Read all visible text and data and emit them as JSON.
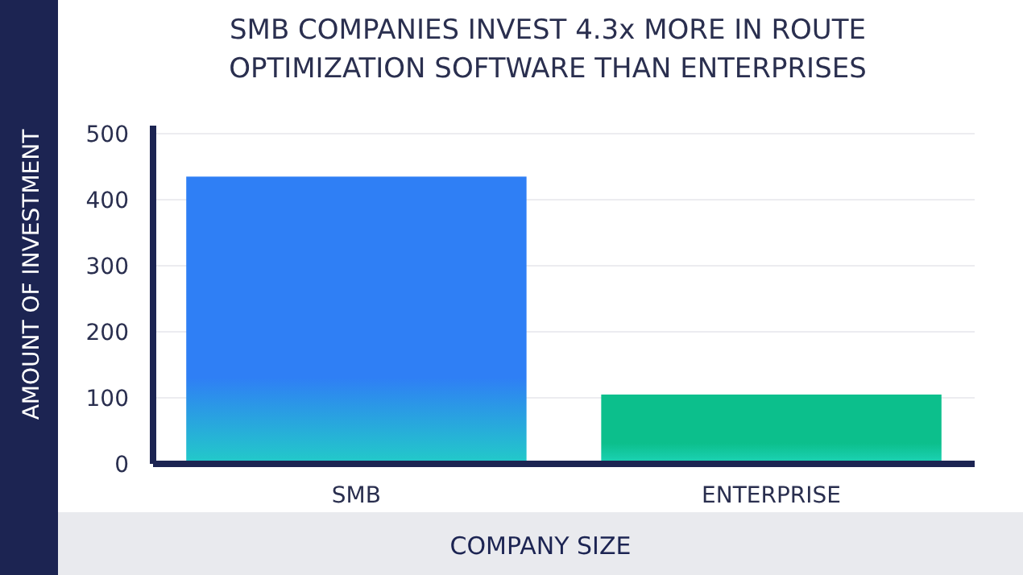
{
  "chart_data": {
    "type": "bar",
    "title": "SMB COMPANIES INVEST 4.3x MORE IN ROUTE OPTIMIZATION SOFTWARE THAN ENTERPRISES",
    "xlabel": "COMPANY SIZE",
    "ylabel": "AMOUNT OF INVESTMENT",
    "categories": [
      "SMB",
      "ENTERPRISE"
    ],
    "values": [
      435,
      105
    ],
    "colors": [
      "#2f7ff5",
      "#0cbf8c"
    ],
    "ylim": [
      0,
      500
    ],
    "yticks": [
      0,
      100,
      200,
      300,
      400,
      500
    ],
    "grid": "y"
  }
}
